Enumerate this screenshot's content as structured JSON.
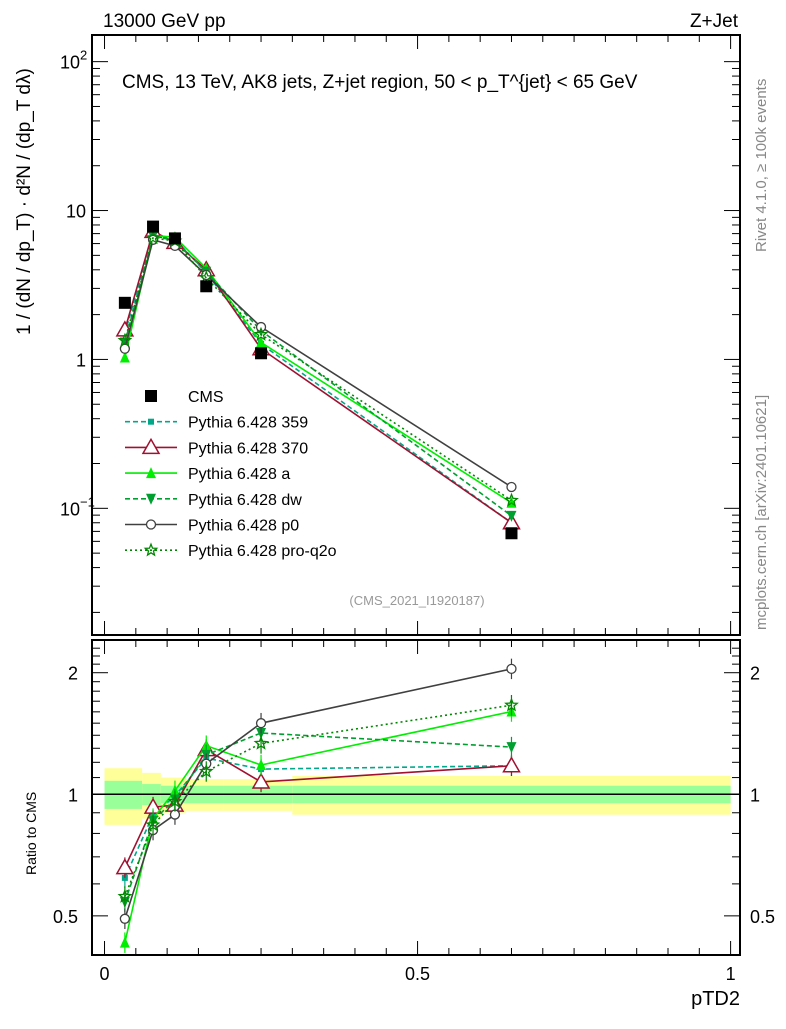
{
  "header": {
    "left": "13000 GeV pp",
    "right": "Z+Jet"
  },
  "side_text": {
    "rivet": "Rivet 4.1.0, ≥ 100k events",
    "mcplots": "mcplots.cern.ch [arXiv:2401.10621]"
  },
  "analysis_id": "(CMS_2021_I1920187)",
  "chart_data": {
    "type": "line",
    "title": "CMS, 13 TeV, AK8 jets, Z+jet region, 50 < p_T^{jet} < 65 GeV",
    "xlabel": "pTD2",
    "ylabel": "1 / (dN / dp_T) · d²N / (dp_T dλ)",
    "ratio_ylabel": "Ratio to CMS",
    "xlim": [
      -0.02,
      1.015
    ],
    "ylim": [
      0.0141,
      151
    ],
    "yscale": "log",
    "ratio_ylim": [
      0.4,
      2.41
    ],
    "x_ticks": [
      {
        "v": 0,
        "label": "0"
      },
      {
        "v": 0.5,
        "label": "0.5"
      },
      {
        "v": 1,
        "label": "1"
      }
    ],
    "y_ticks": [
      {
        "v": 0.1,
        "base": "10",
        "exp": "−1"
      },
      {
        "v": 1,
        "base": "1",
        "exp": ""
      },
      {
        "v": 10,
        "base": "10",
        "exp": ""
      },
      {
        "v": 100,
        "base": "10",
        "exp": "2"
      }
    ],
    "ratio_ticks": [
      {
        "v": 0.5,
        "label": "0.5"
      },
      {
        "v": 1,
        "label": "1"
      },
      {
        "v": 2,
        "label": "2"
      }
    ],
    "bin_edges": [
      0,
      0.06,
      0.09,
      0.13,
      0.19,
      0.3,
      1.0
    ],
    "x": [
      0.0325,
      0.0775,
      0.1125,
      0.1625,
      0.25,
      0.65
    ],
    "data": {
      "name": "CMS",
      "values": [
        2.4,
        7.8,
        6.5,
        3.1,
        1.1,
        0.068
      ],
      "rel_err_stat": [
        0.08,
        0.06,
        0.05,
        0.05,
        0.05,
        0.05
      ],
      "rel_err_total": [
        0.16,
        0.13,
        0.1,
        0.09,
        0.09,
        0.11
      ]
    },
    "series": [
      {
        "name": "Pythia 6.428 359",
        "color": "#00a88a",
        "dash": "5,3",
        "marker": "square-small",
        "values": [
          1.49,
          6.94,
          6.44,
          3.81,
          1.27,
          0.08
        ]
      },
      {
        "name": "Pythia 6.428 370",
        "color": "#a01030",
        "dash": "",
        "marker": "triangle-open",
        "values": [
          1.58,
          7.25,
          6.11,
          4.0,
          1.18,
          0.08
        ]
      },
      {
        "name": "Pythia 6.428 a",
        "color": "#00ee00",
        "dash": "",
        "marker": "triangle",
        "values": [
          1.03,
          6.79,
          6.63,
          4.09,
          1.3,
          0.109
        ]
      },
      {
        "name": "Pythia 6.428 dw",
        "color": "#00a030",
        "dash": "5,3",
        "marker": "triangle-down",
        "values": [
          1.3,
          6.71,
          6.31,
          3.88,
          1.56,
          0.089
        ]
      },
      {
        "name": "Pythia 6.428 p0",
        "color": "#404040",
        "dash": "",
        "marker": "circle-open",
        "values": [
          1.18,
          6.36,
          5.79,
          3.69,
          1.65,
          0.139
        ]
      },
      {
        "name": "Pythia 6.428 pro-q2o",
        "color": "#008800",
        "dash": "2,3",
        "marker": "star-open",
        "values": [
          1.34,
          6.55,
          6.24,
          3.53,
          1.47,
          0.113
        ]
      }
    ]
  }
}
